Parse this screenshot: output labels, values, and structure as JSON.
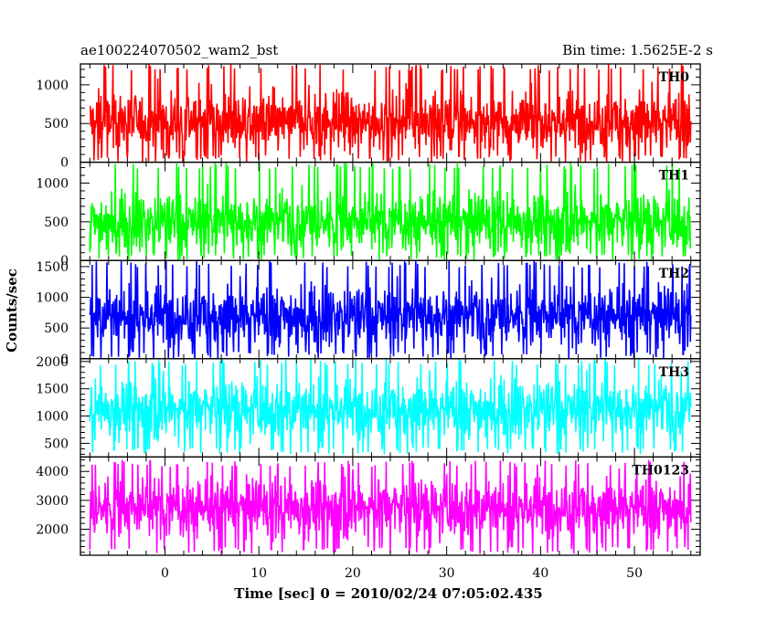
{
  "chart_data": {
    "type": "line",
    "title_left": "ae100224070502_wam2_bst",
    "title_right": "Bin time: 1.5625E-2 s",
    "xlabel": "Time [sec] 0 = 2010/02/24 07:05:02.435",
    "ylabel": "Counts/sec",
    "xlim": [
      -9,
      57
    ],
    "x_ticks": [
      0,
      10,
      20,
      30,
      40,
      50
    ],
    "x_range": [
      -8,
      56
    ],
    "grid": false,
    "panels": [
      {
        "name": "TH0",
        "color": "#ff0000",
        "ylim": [
          0,
          1270
        ],
        "y_ticks": [
          0,
          500,
          1000
        ],
        "mean": 530,
        "spread": 300,
        "min": 0,
        "max": 1270
      },
      {
        "name": "TH1",
        "color": "#00ff00",
        "ylim": [
          0,
          1270
        ],
        "y_ticks": [
          0,
          500,
          1000
        ],
        "mean": 500,
        "spread": 290,
        "min": 0,
        "max": 1270
      },
      {
        "name": "TH2",
        "color": "#0000ff",
        "ylim": [
          0,
          1600
        ],
        "y_ticks": [
          0,
          500,
          1000,
          1500
        ],
        "mean": 700,
        "spread": 380,
        "min": 0,
        "max": 1600
      },
      {
        "name": "TH3",
        "color": "#00ffff",
        "ylim": [
          250,
          2050
        ],
        "y_ticks": [
          500,
          1000,
          1500,
          2000
        ],
        "mean": 1130,
        "spread": 420,
        "min": 300,
        "max": 2050
      },
      {
        "name": "TH0123",
        "color": "#ff00ff",
        "ylim": [
          1100,
          4500
        ],
        "y_ticks": [
          2000,
          3000,
          4000
        ],
        "mean": 2750,
        "spread": 800,
        "min": 1150,
        "max": 4400
      }
    ]
  }
}
